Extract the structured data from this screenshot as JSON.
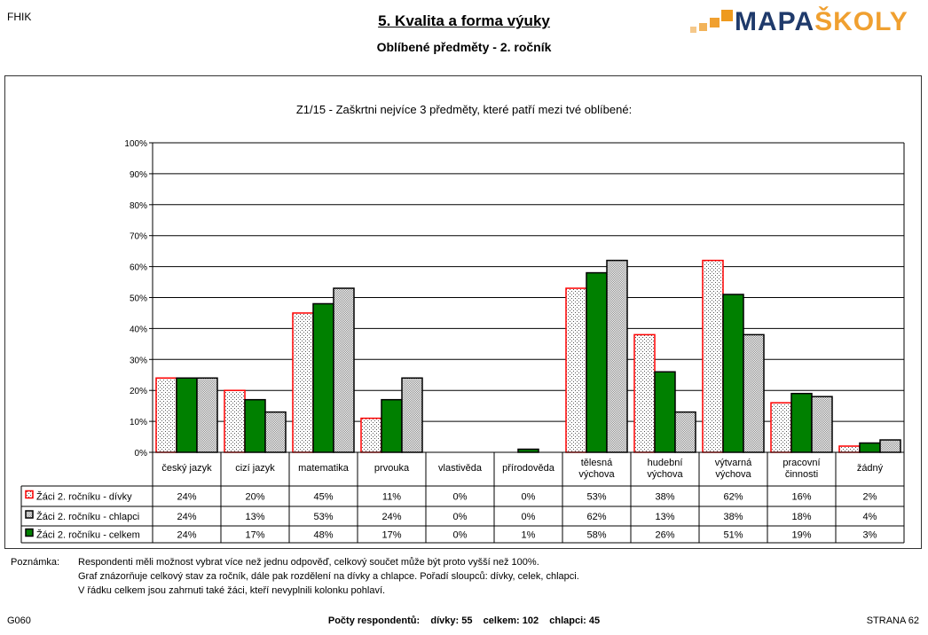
{
  "header": {
    "corner_code": "FHIK",
    "title": "5. Kvalita a forma výuky",
    "subtitle": "Oblíbené předměty - 2. ročník",
    "logo_text": "MAPAŠKOLY"
  },
  "chart_data": {
    "type": "bar",
    "title": "Z1/15 - Zaškrtni nejvíce 3 předměty, které patří mezi tvé oblíbené:",
    "categories": [
      [
        "český jazyk"
      ],
      [
        "cizí jazyk"
      ],
      [
        "matematika"
      ],
      [
        "prvouka"
      ],
      [
        "vlastivěda"
      ],
      [
        "přírodověda"
      ],
      [
        "tělesná",
        "výchova"
      ],
      [
        "hudební",
        "výchova"
      ],
      [
        "výtvarná",
        "výchova"
      ],
      [
        "pracovní",
        "činnosti"
      ],
      [
        "žádný"
      ]
    ],
    "yticks": [
      "0%",
      "10%",
      "20%",
      "30%",
      "40%",
      "50%",
      "60%",
      "70%",
      "80%",
      "90%",
      "100%"
    ],
    "ylim": [
      0,
      100
    ],
    "grid": true,
    "series": [
      {
        "name": "Žáci 2. ročníku - dívky",
        "values": [
          24,
          20,
          45,
          11,
          0,
          0,
          53,
          38,
          62,
          16,
          2
        ],
        "labels": [
          "24%",
          "20%",
          "45%",
          "11%",
          "0%",
          "0%",
          "53%",
          "38%",
          "62%",
          "16%",
          "2%"
        ],
        "fill": "#ffffff",
        "stroke": "#ff0000",
        "pattern": "dots"
      },
      {
        "name": "Žáci 2. ročníku - chlapci",
        "values": [
          24,
          13,
          53,
          24,
          0,
          0,
          62,
          13,
          38,
          18,
          4
        ],
        "labels": [
          "24%",
          "13%",
          "53%",
          "24%",
          "0%",
          "0%",
          "62%",
          "13%",
          "38%",
          "18%",
          "4%"
        ],
        "fill": "#d4d4d4",
        "stroke": "#000000",
        "pattern": "checker"
      },
      {
        "name": "Žáci 2. ročníku - celkem",
        "values": [
          24,
          17,
          48,
          17,
          0,
          1,
          58,
          26,
          51,
          19,
          3
        ],
        "labels": [
          "24%",
          "17%",
          "48%",
          "17%",
          "0%",
          "1%",
          "58%",
          "26%",
          "51%",
          "19%",
          "3%"
        ],
        "fill": "#008000",
        "stroke": "#000000",
        "pattern": "solid"
      }
    ],
    "bar_order": [
      0,
      2,
      1
    ]
  },
  "notes": {
    "label": "Poznámka:",
    "lines": [
      "Respondenti měli možnost vybrat více než jednu odpověď, celkový součet může být proto vyšší než 100%.",
      "Graf znázorňuje celkový stav za ročník, dále pak rozdělení na dívky a chlapce. Pořadí sloupců: dívky, celek, chlapci.",
      "V řádku celkem jsou zahrnuti také žáci, kteří nevyplnili kolonku pohlaví."
    ]
  },
  "footer": {
    "left": "G060",
    "center": "Počty respondentů:    dívky: 55    celkem: 102    chlapci: 45",
    "right": "STRANA 62"
  }
}
